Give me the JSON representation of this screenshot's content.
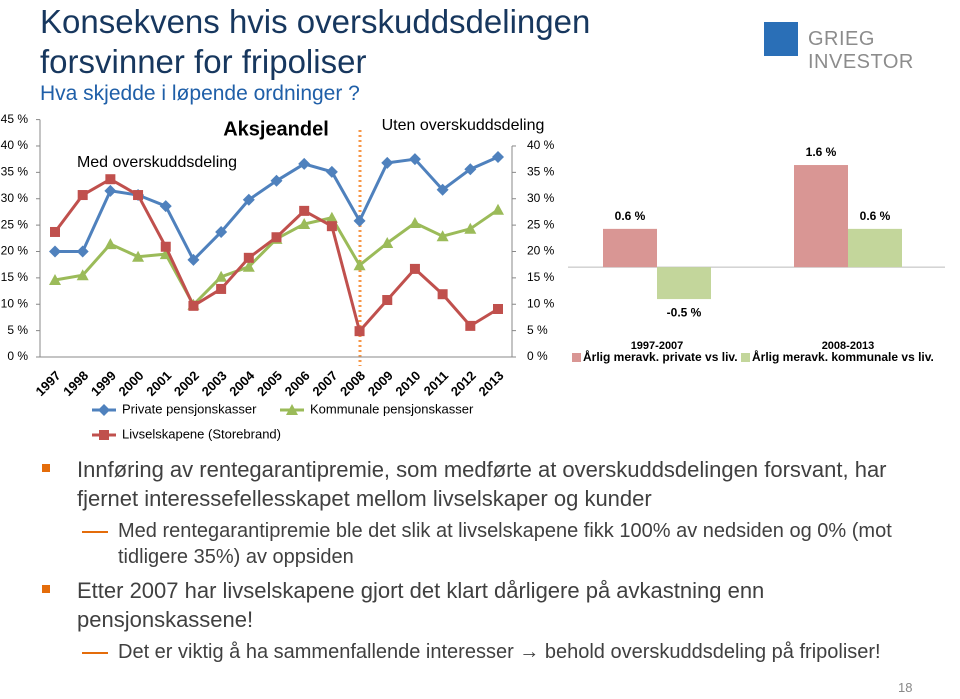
{
  "title": "Konsekvens hvis overskuddsdelingen forsvinner for fripoliser",
  "subtitle": "Hva skjedde i løpende ordninger ?",
  "logo": "GRIEG INVESTOR",
  "page_number": "18",
  "bullets": [
    {
      "text": "Innføring av rentegarantipremie, som medførte at overskuddsdelingen forsvant, har fjernet interessefellesskapet mellom livselskaper og kunder",
      "sub": [
        "Med rentegarantipremie ble det slik at livselskapene fikk 100% av nedsiden og 0% (mot tidligere 35%) av oppsiden"
      ]
    },
    {
      "text": "Etter 2007 har livselskapene gjort det klart dårligere på avkastning enn pensjonskassene!",
      "sub": [
        "Det er viktig å ha sammenfallende interesser → behold overskuddsdeling på fripoliser!"
      ]
    }
  ],
  "chart_data": [
    {
      "type": "line",
      "annotations": [
        "Aksjeandel",
        "Uten overskuddsdeling",
        "Med overskuddsdeling"
      ],
      "categories": [
        "1997",
        "1998",
        "1999",
        "2000",
        "2001",
        "2002",
        "2003",
        "2004",
        "2005",
        "2006",
        "2007",
        "2008",
        "2009",
        "2010",
        "2011",
        "2012",
        "2013"
      ],
      "ylim": [
        0,
        45
      ],
      "yticks": [
        {
          "value": 0,
          "label": "0 %"
        },
        {
          "value": 5,
          "label": "5 %"
        },
        {
          "value": 10,
          "label": "10 %"
        },
        {
          "value": 15,
          "label": "15 %"
        },
        {
          "value": 20,
          "label": "20 %"
        },
        {
          "value": 25,
          "label": "25 %"
        },
        {
          "value": 30,
          "label": "30 %"
        },
        {
          "value": 35,
          "label": "35 %"
        },
        {
          "value": 40,
          "label": "40 %"
        },
        {
          "value": 45,
          "label": "45 %"
        }
      ],
      "y2lim": [
        0,
        45
      ],
      "y2ticks": [
        {
          "value": 0,
          "label": "0 %"
        },
        {
          "value": 5,
          "label": "5 %"
        },
        {
          "value": 10,
          "label": "10 %"
        },
        {
          "value": 15,
          "label": "15 %"
        },
        {
          "value": 20,
          "label": "20 %"
        },
        {
          "value": 25,
          "label": "25 %"
        },
        {
          "value": 30,
          "label": "30 %"
        },
        {
          "value": 35,
          "label": "35 %"
        },
        {
          "value": 40,
          "label": "40 %"
        }
      ],
      "series": [
        {
          "name": "Private pensjonskasser",
          "color": "#4f81bd",
          "marker": "diamond",
          "values": [
            20,
            20,
            31.5,
            30.7,
            28.6,
            18.4,
            23.7,
            29.8,
            33.4,
            36.6,
            35.1,
            25.8,
            36.8,
            37.5,
            31.7,
            35.6,
            37.9
          ]
        },
        {
          "name": "Kommunale pensjonskasser",
          "color": "#9bbb59",
          "marker": "triangle",
          "values": [
            14.6,
            15.5,
            21.4,
            19,
            19.5,
            9.9,
            15.2,
            17.1,
            22.4,
            25.2,
            26.4,
            17.4,
            21.6,
            25.4,
            22.9,
            24.3,
            27.9
          ]
        },
        {
          "name": "Livselskapene (Storebrand)",
          "color": "#c0504d",
          "marker": "square",
          "values": [
            23.7,
            30.7,
            33.7,
            30.7,
            20.9,
            9.7,
            12.9,
            18.8,
            22.7,
            27.7,
            24.8,
            4.9,
            10.8,
            16.7,
            11.9,
            5.9,
            9.1
          ]
        }
      ]
    },
    {
      "type": "bar",
      "categories": [
        "1997-2007",
        "2008-2013"
      ],
      "ylim": [
        -1,
        2
      ],
      "series": [
        {
          "name": "Årlig meravk. private vs liv.",
          "color": "#d99694",
          "values": [
            0.6,
            1.6
          ],
          "value_labels": [
            "0.6 %",
            "1.6 %"
          ]
        },
        {
          "name": "Årlig meravk. kommunale vs liv.",
          "color": "#c3d69b",
          "values": [
            -0.5,
            0.6
          ],
          "value_labels": [
            "-0.5 %",
            "0.6 %"
          ]
        }
      ]
    }
  ]
}
